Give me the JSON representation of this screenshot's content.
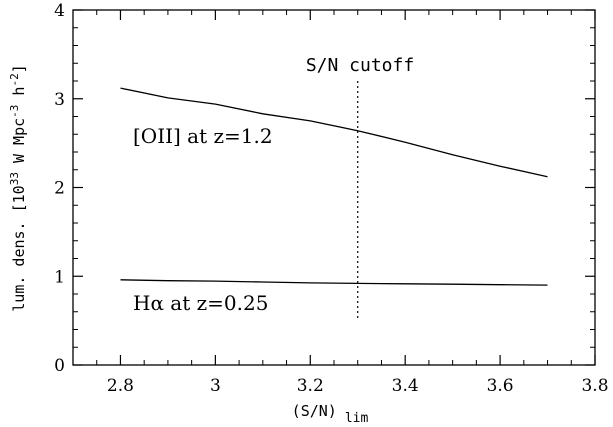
{
  "chart_data": {
    "type": "line",
    "xlabel": "(S/N)",
    "xlabel_sub": "lim",
    "ylabel": "lum. dens. [10",
    "ylabel_sup1": "33",
    "ylabel_mid": " W Mpc",
    "ylabel_sup2": "-3",
    "ylabel_mid2": " h",
    "ylabel_sup3": "-2",
    "ylabel_end": "]",
    "xlim": [
      2.7,
      3.8
    ],
    "ylim": [
      0,
      4
    ],
    "x_ticks": [
      2.8,
      3,
      3.2,
      3.4,
      3.6,
      3.8
    ],
    "x_tick_labels": [
      "2.8",
      "3",
      "3.2",
      "3.4",
      "3.6",
      "3.8"
    ],
    "y_ticks": [
      0,
      1,
      2,
      3,
      4
    ],
    "y_tick_labels": [
      "0",
      "1",
      "2",
      "3",
      "4"
    ],
    "series": [
      {
        "label": "[OII] at z=1.2",
        "x": [
          2.8,
          2.9,
          3.0,
          3.1,
          3.2,
          3.3,
          3.4,
          3.5,
          3.6,
          3.7
        ],
        "y": [
          3.12,
          3.01,
          2.94,
          2.83,
          2.75,
          2.64,
          2.51,
          2.37,
          2.24,
          2.12
        ]
      },
      {
        "label": "Hα at z=0.25",
        "x": [
          2.8,
          2.9,
          3.0,
          3.1,
          3.2,
          3.3,
          3.4,
          3.5,
          3.6,
          3.7
        ],
        "y": [
          0.96,
          0.95,
          0.945,
          0.935,
          0.925,
          0.92,
          0.915,
          0.91,
          0.905,
          0.9
        ]
      }
    ],
    "cutoff": {
      "x": 3.3,
      "y_range": [
        0.5,
        3.2
      ],
      "label": "S/N cutoff"
    },
    "grid": false
  }
}
